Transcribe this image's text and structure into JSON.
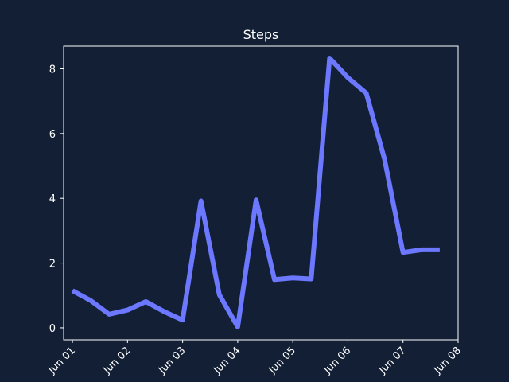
{
  "chart_data": {
    "type": "line",
    "title": "Steps",
    "xlabel": "",
    "ylabel": "",
    "x_tick_labels": [
      "Jun 01",
      "Jun 02",
      "Jun 03",
      "Jun 04",
      "Jun 05",
      "Jun 06",
      "Jun 07",
      "Jun 08"
    ],
    "y_ticks": [
      0,
      2,
      4,
      6,
      8
    ],
    "ylim": [
      -0.37,
      8.7
    ],
    "xlim": [
      "2024-05-31T20:10",
      "2024-06-08T00:00"
    ],
    "grid": false,
    "series": [
      {
        "color": "#6c78ff",
        "x": [
          "2024-06-01T00:00",
          "2024-06-01T08:00",
          "2024-06-01T16:00",
          "2024-06-02T00:00",
          "2024-06-02T08:00",
          "2024-06-02T16:00",
          "2024-06-03T00:00",
          "2024-06-03T08:00",
          "2024-06-03T16:00",
          "2024-06-04T00:00",
          "2024-06-04T08:00",
          "2024-06-04T16:00",
          "2024-06-05T00:00",
          "2024-06-05T08:00",
          "2024-06-05T16:00",
          "2024-06-06T00:00",
          "2024-06-06T08:00",
          "2024-06-06T16:00",
          "2024-06-07T00:00",
          "2024-06-07T08:00",
          "2024-06-07T16:00"
        ],
        "values": [
          1.15,
          0.84,
          0.42,
          0.55,
          0.81,
          0.5,
          0.24,
          3.92,
          1.02,
          0.03,
          3.95,
          1.49,
          1.54,
          1.51,
          8.33,
          7.73,
          7.25,
          5.2,
          2.33,
          2.41,
          2.41
        ]
      }
    ]
  },
  "colors": {
    "background": "#131f35",
    "axis": "#ffffff",
    "line": "#6c78ff"
  }
}
